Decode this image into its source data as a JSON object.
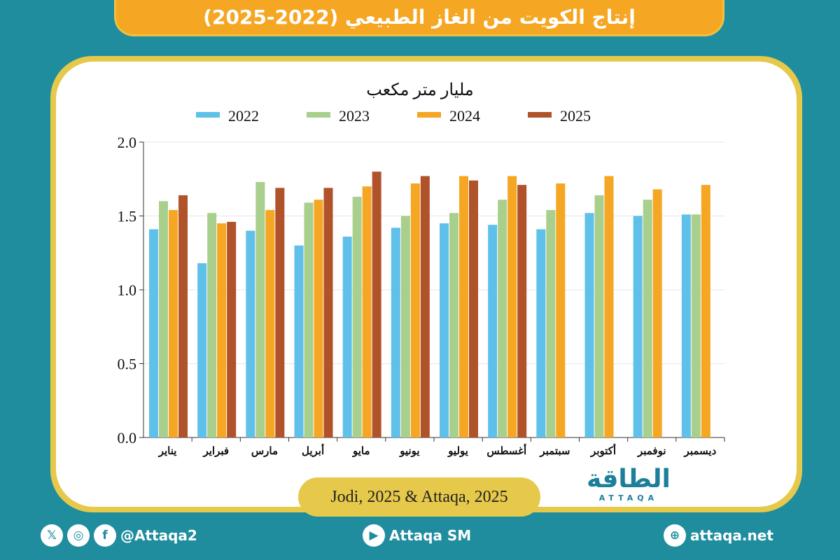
{
  "title": "إنتاج الكويت من الغاز الطبيعي (2022-2025)",
  "source": "Jodi, 2025 & Attaqa, 2025",
  "logo": {
    "arabic": "الطاقة",
    "latin": "ATTAQA"
  },
  "footer": {
    "handle": "@Attaqa2",
    "youtube": "Attaqa SM",
    "website": "attaqa.net",
    "icons": [
      "x-icon",
      "instagram-icon",
      "facebook-icon",
      "youtube-icon",
      "globe-icon"
    ]
  },
  "chart_data": {
    "type": "bar",
    "ylabel": "مليار متر مكعب",
    "ylim": [
      0,
      2.0
    ],
    "yticks": [
      "0.0",
      "0.5",
      "1.0",
      "1.5",
      "2.0"
    ],
    "grid": true,
    "legend_position": "top",
    "categories": [
      "يناير",
      "فبراير",
      "مارس",
      "أبريل",
      "مايو",
      "يونيو",
      "يوليو",
      "أغسطس",
      "سبتمبر",
      "أكتوبر",
      "نوفمبر",
      "ديسمبر"
    ],
    "series": [
      {
        "name": "2022",
        "color": "#5fc0ea",
        "values": [
          1.41,
          1.18,
          1.4,
          1.3,
          1.36,
          1.42,
          1.45,
          1.44,
          1.41,
          1.52,
          1.5,
          1.51
        ]
      },
      {
        "name": "2023",
        "color": "#a9cf8c",
        "values": [
          1.6,
          1.52,
          1.73,
          1.59,
          1.63,
          1.5,
          1.52,
          1.61,
          1.54,
          1.64,
          1.61,
          1.51
        ]
      },
      {
        "name": "2024",
        "color": "#f5a623",
        "values": [
          1.54,
          1.45,
          1.54,
          1.61,
          1.7,
          1.72,
          1.77,
          1.77,
          1.72,
          1.77,
          1.68,
          1.71
        ]
      },
      {
        "name": "2025",
        "color": "#b0522a",
        "values": [
          1.64,
          1.46,
          1.69,
          1.69,
          1.8,
          1.77,
          1.74,
          1.71,
          null,
          null,
          null,
          null
        ]
      }
    ]
  }
}
